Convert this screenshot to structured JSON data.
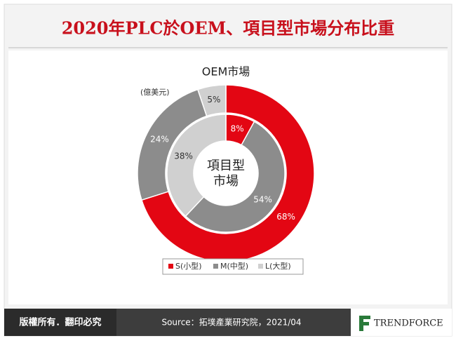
{
  "chart_data": {
    "type": "donut",
    "title": "2020年PLC於OEM、項目型市場分布比重",
    "unit": "(億美元)",
    "categories": [
      "S(小型)",
      "M(中型)",
      "L(大型)"
    ],
    "colors": [
      "#e30613",
      "#8c8c8c",
      "#d0d0d0"
    ],
    "rings": [
      {
        "name": "OEM市場",
        "values": [
          68,
          24,
          5
        ],
        "value_labels": [
          "68%",
          "24%",
          "5%"
        ]
      },
      {
        "name": [
          "項目型",
          "市場"
        ],
        "values": [
          8,
          54,
          38
        ],
        "value_labels": [
          "8%",
          "54%",
          "38%"
        ]
      }
    ]
  },
  "footer": {
    "rights": "版權所有．翻印必究",
    "source": "Source：拓墣產業研究院，2021/04",
    "brand": "TRENDFORCE"
  }
}
